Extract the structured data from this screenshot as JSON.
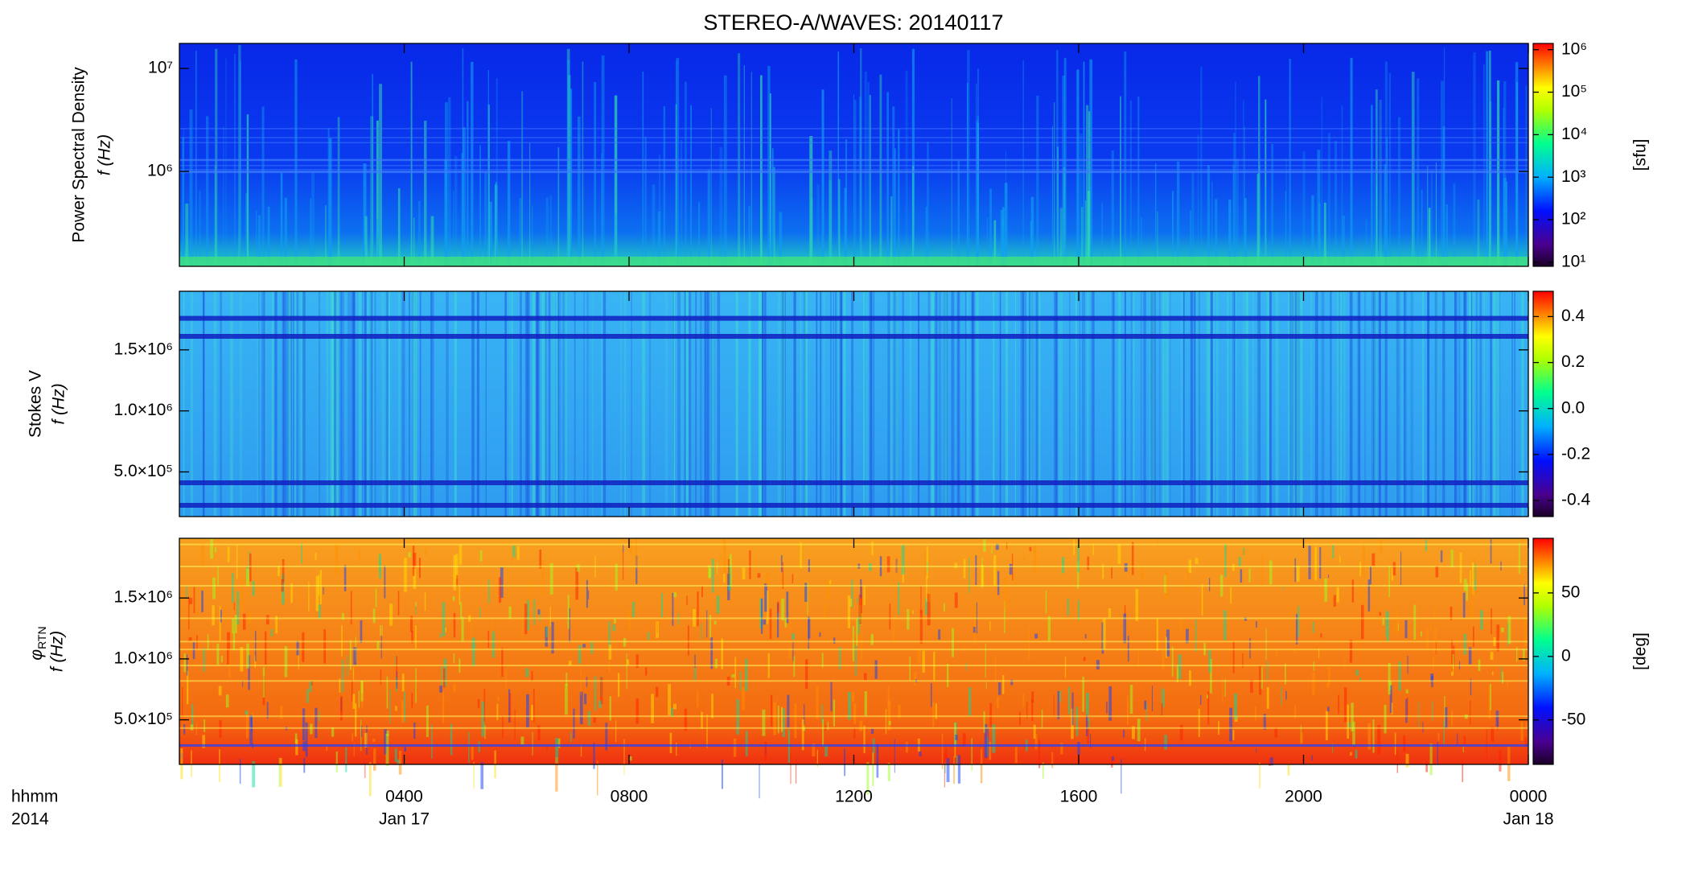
{
  "title": "STEREO-A/WAVES: 20140117",
  "chart_data": [
    {
      "type": "spectrogram",
      "ylabel": [
        "Power Spectral Density",
        "f (Hz)"
      ],
      "ylog": true,
      "ylim": [
        120000,
        17500000
      ],
      "yticks": [
        {
          "value": 1000000,
          "label": "10⁶"
        },
        {
          "value": 10000000,
          "label": "10⁷"
        }
      ],
      "xlim": [
        0,
        24
      ],
      "colorbar": {
        "log": true,
        "lim": [
          8,
          1400000
        ],
        "label": "[sfu]",
        "ticks": [
          {
            "value": 10,
            "label": "10¹"
          },
          {
            "value": 100,
            "label": "10²"
          },
          {
            "value": 1000,
            "label": "10³"
          },
          {
            "value": 10000,
            "label": "10⁴"
          },
          {
            "value": 100000,
            "label": "10⁵"
          },
          {
            "value": 1000000,
            "label": "10⁶"
          }
        ]
      }
    },
    {
      "type": "spectrogram",
      "ylabel": [
        "Stokes V",
        "f (Hz)"
      ],
      "ylog": false,
      "ylim": [
        134000,
        1980000
      ],
      "yticks": [
        {
          "value": 500000,
          "label": "5.0×10⁵"
        },
        {
          "value": 1000000,
          "label": "1.0×10⁶"
        },
        {
          "value": 1500000,
          "label": "1.5×10⁶"
        }
      ],
      "xlim": [
        0,
        24
      ],
      "colorbar": {
        "log": false,
        "lim": [
          -0.47,
          0.51
        ],
        "ticks": [
          -0.4,
          -0.2,
          {
            "value": 0,
            "label": "0.0"
          },
          0.2,
          0.4
        ]
      }
    },
    {
      "type": "spectrogram",
      "ylabel": [
        "f (Hz)"
      ],
      "ylabel_symbol": "φ",
      "ylabel_subscript": "RTN",
      "ylog": false,
      "ylim": [
        134000,
        1990000
      ],
      "yticks": [
        {
          "value": 500000,
          "label": "5.0×10⁵"
        },
        {
          "value": 1000000,
          "label": "1.0×10⁶"
        },
        {
          "value": 1500000,
          "label": "1.5×10⁶"
        }
      ],
      "xlim": [
        0,
        24
      ],
      "xticks": [
        {
          "value": 4,
          "label": "0400"
        },
        {
          "value": 8,
          "label": "0800"
        },
        {
          "value": 12,
          "label": "1200"
        },
        {
          "value": 16,
          "label": "1600"
        },
        {
          "value": 20,
          "label": "2000"
        },
        {
          "value": 24,
          "label": "0000"
        }
      ],
      "date_labels": [
        {
          "value": 4,
          "label": "Jan 17"
        },
        {
          "value": 24,
          "label": "Jan 18"
        }
      ],
      "xlabel": [
        "hhmm",
        "2014"
      ],
      "colorbar": {
        "log": false,
        "lim": [
          -85,
          93
        ],
        "label": "[deg]",
        "ticks": [
          -50,
          0,
          50
        ]
      }
    }
  ]
}
